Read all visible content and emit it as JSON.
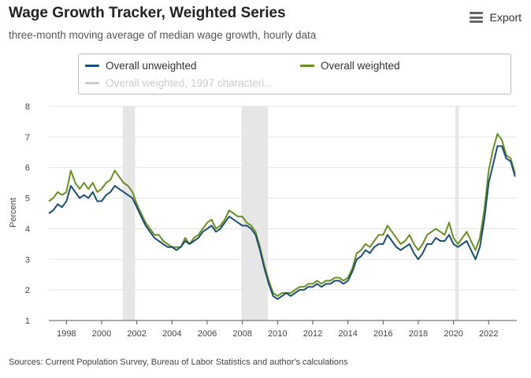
{
  "title": "Wage Growth Tracker, Weighted Series",
  "subtitle": "three-month moving average of median wage growth, hourly data",
  "export_label": "Export",
  "source": "Sources: Current Population Survey, Bureau of Labor Statistics and author's calculations",
  "chart_data": {
    "type": "line",
    "ylabel": "Percent",
    "xlabel": "",
    "ylim": [
      1,
      8
    ],
    "xlim": [
      1997,
      2023.6
    ],
    "yticks": [
      1,
      2,
      3,
      4,
      5,
      6,
      7,
      8
    ],
    "xticks": [
      1998,
      2000,
      2002,
      2004,
      2006,
      2008,
      2010,
      2012,
      2014,
      2016,
      2018,
      2020,
      2022
    ],
    "grid": true,
    "legend": "top",
    "recessions": [
      [
        2001.2,
        2001.9
      ],
      [
        2007.95,
        2009.45
      ],
      [
        2020.1,
        2020.3
      ]
    ],
    "series": [
      {
        "name": "Overall unweighted",
        "color": "#1b4f72",
        "visible": true,
        "x": [
          1997.0,
          1997.25,
          1997.5,
          1997.75,
          1998.0,
          1998.25,
          1998.5,
          1998.75,
          1999.0,
          1999.25,
          1999.5,
          1999.75,
          2000.0,
          2000.25,
          2000.5,
          2000.75,
          2001.0,
          2001.25,
          2001.5,
          2001.75,
          2002.0,
          2002.25,
          2002.5,
          2002.75,
          2003.0,
          2003.25,
          2003.5,
          2003.75,
          2004.0,
          2004.25,
          2004.5,
          2004.75,
          2005.0,
          2005.25,
          2005.5,
          2005.75,
          2006.0,
          2006.25,
          2006.5,
          2006.75,
          2007.0,
          2007.25,
          2007.5,
          2007.75,
          2008.0,
          2008.25,
          2008.5,
          2008.75,
          2009.0,
          2009.25,
          2009.5,
          2009.75,
          2010.0,
          2010.25,
          2010.5,
          2010.75,
          2011.0,
          2011.25,
          2011.5,
          2011.75,
          2012.0,
          2012.25,
          2012.5,
          2012.75,
          2013.0,
          2013.25,
          2013.5,
          2013.75,
          2014.0,
          2014.25,
          2014.5,
          2014.75,
          2015.0,
          2015.25,
          2015.5,
          2015.75,
          2016.0,
          2016.25,
          2016.5,
          2016.75,
          2017.0,
          2017.25,
          2017.5,
          2017.75,
          2018.0,
          2018.25,
          2018.5,
          2018.75,
          2019.0,
          2019.25,
          2019.5,
          2019.75,
          2020.0,
          2020.25,
          2020.5,
          2020.75,
          2021.0,
          2021.25,
          2021.5,
          2021.75,
          2022.0,
          2022.25,
          2022.5,
          2022.75,
          2023.0,
          2023.25,
          2023.5
        ],
        "values": [
          4.5,
          4.6,
          4.8,
          4.7,
          4.9,
          5.4,
          5.2,
          5.0,
          5.1,
          5.0,
          5.2,
          4.9,
          4.9,
          5.1,
          5.2,
          5.4,
          5.3,
          5.2,
          5.1,
          5.0,
          4.7,
          4.4,
          4.1,
          3.9,
          3.7,
          3.6,
          3.5,
          3.4,
          3.4,
          3.3,
          3.4,
          3.6,
          3.5,
          3.6,
          3.7,
          3.9,
          4.0,
          4.1,
          3.9,
          4.0,
          4.2,
          4.4,
          4.3,
          4.2,
          4.1,
          4.1,
          4.0,
          3.8,
          3.3,
          2.7,
          2.2,
          1.8,
          1.7,
          1.8,
          1.9,
          1.8,
          1.9,
          2.0,
          2.0,
          2.1,
          2.1,
          2.2,
          2.1,
          2.2,
          2.2,
          2.3,
          2.3,
          2.2,
          2.3,
          2.6,
          3.0,
          3.1,
          3.3,
          3.2,
          3.4,
          3.5,
          3.5,
          3.8,
          3.6,
          3.4,
          3.3,
          3.4,
          3.5,
          3.2,
          3.0,
          3.2,
          3.5,
          3.5,
          3.7,
          3.6,
          3.6,
          3.8,
          3.5,
          3.4,
          3.5,
          3.6,
          3.3,
          3.0,
          3.4,
          4.3,
          5.5,
          6.1,
          6.7,
          6.7,
          6.3,
          6.2,
          5.7
        ]
      },
      {
        "name": "Overall weighted",
        "color": "#6b8e23",
        "visible": true,
        "x": [
          1997.0,
          1997.25,
          1997.5,
          1997.75,
          1998.0,
          1998.25,
          1998.5,
          1998.75,
          1999.0,
          1999.25,
          1999.5,
          1999.75,
          2000.0,
          2000.25,
          2000.5,
          2000.75,
          2001.0,
          2001.25,
          2001.5,
          2001.75,
          2002.0,
          2002.25,
          2002.5,
          2002.75,
          2003.0,
          2003.25,
          2003.5,
          2003.75,
          2004.0,
          2004.25,
          2004.5,
          2004.75,
          2005.0,
          2005.25,
          2005.5,
          2005.75,
          2006.0,
          2006.25,
          2006.5,
          2006.75,
          2007.0,
          2007.25,
          2007.5,
          2007.75,
          2008.0,
          2008.25,
          2008.5,
          2008.75,
          2009.0,
          2009.25,
          2009.5,
          2009.75,
          2010.0,
          2010.25,
          2010.5,
          2010.75,
          2011.0,
          2011.25,
          2011.5,
          2011.75,
          2012.0,
          2012.25,
          2012.5,
          2012.75,
          2013.0,
          2013.25,
          2013.5,
          2013.75,
          2014.0,
          2014.25,
          2014.5,
          2014.75,
          2015.0,
          2015.25,
          2015.5,
          2015.75,
          2016.0,
          2016.25,
          2016.5,
          2016.75,
          2017.0,
          2017.25,
          2017.5,
          2017.75,
          2018.0,
          2018.25,
          2018.5,
          2018.75,
          2019.0,
          2019.25,
          2019.5,
          2019.75,
          2020.0,
          2020.25,
          2020.5,
          2020.75,
          2021.0,
          2021.25,
          2021.5,
          2021.75,
          2022.0,
          2022.25,
          2022.5,
          2022.75,
          2023.0,
          2023.25,
          2023.5
        ],
        "values": [
          4.9,
          5.0,
          5.2,
          5.1,
          5.2,
          5.9,
          5.5,
          5.3,
          5.5,
          5.3,
          5.5,
          5.2,
          5.3,
          5.5,
          5.6,
          5.9,
          5.7,
          5.5,
          5.4,
          5.2,
          4.8,
          4.5,
          4.2,
          4.0,
          3.8,
          3.8,
          3.6,
          3.5,
          3.4,
          3.4,
          3.4,
          3.7,
          3.5,
          3.7,
          3.8,
          4.0,
          4.2,
          4.3,
          4.0,
          4.1,
          4.3,
          4.6,
          4.5,
          4.4,
          4.4,
          4.2,
          4.1,
          3.9,
          3.4,
          2.8,
          2.3,
          1.9,
          1.8,
          1.9,
          1.9,
          1.9,
          2.0,
          2.1,
          2.1,
          2.2,
          2.2,
          2.3,
          2.2,
          2.3,
          2.3,
          2.4,
          2.4,
          2.3,
          2.4,
          2.7,
          3.2,
          3.3,
          3.5,
          3.4,
          3.6,
          3.8,
          3.8,
          4.1,
          3.9,
          3.7,
          3.5,
          3.6,
          3.8,
          3.5,
          3.3,
          3.5,
          3.8,
          3.9,
          4.0,
          3.9,
          3.8,
          4.2,
          3.7,
          3.5,
          3.7,
          3.9,
          3.6,
          3.3,
          3.7,
          4.6,
          5.9,
          6.6,
          7.1,
          6.9,
          6.4,
          6.3,
          5.8
        ]
      },
      {
        "name": "Overall weighted, 1997 characteri...",
        "color": "#cccccc",
        "visible": false,
        "x": [],
        "values": []
      }
    ]
  }
}
